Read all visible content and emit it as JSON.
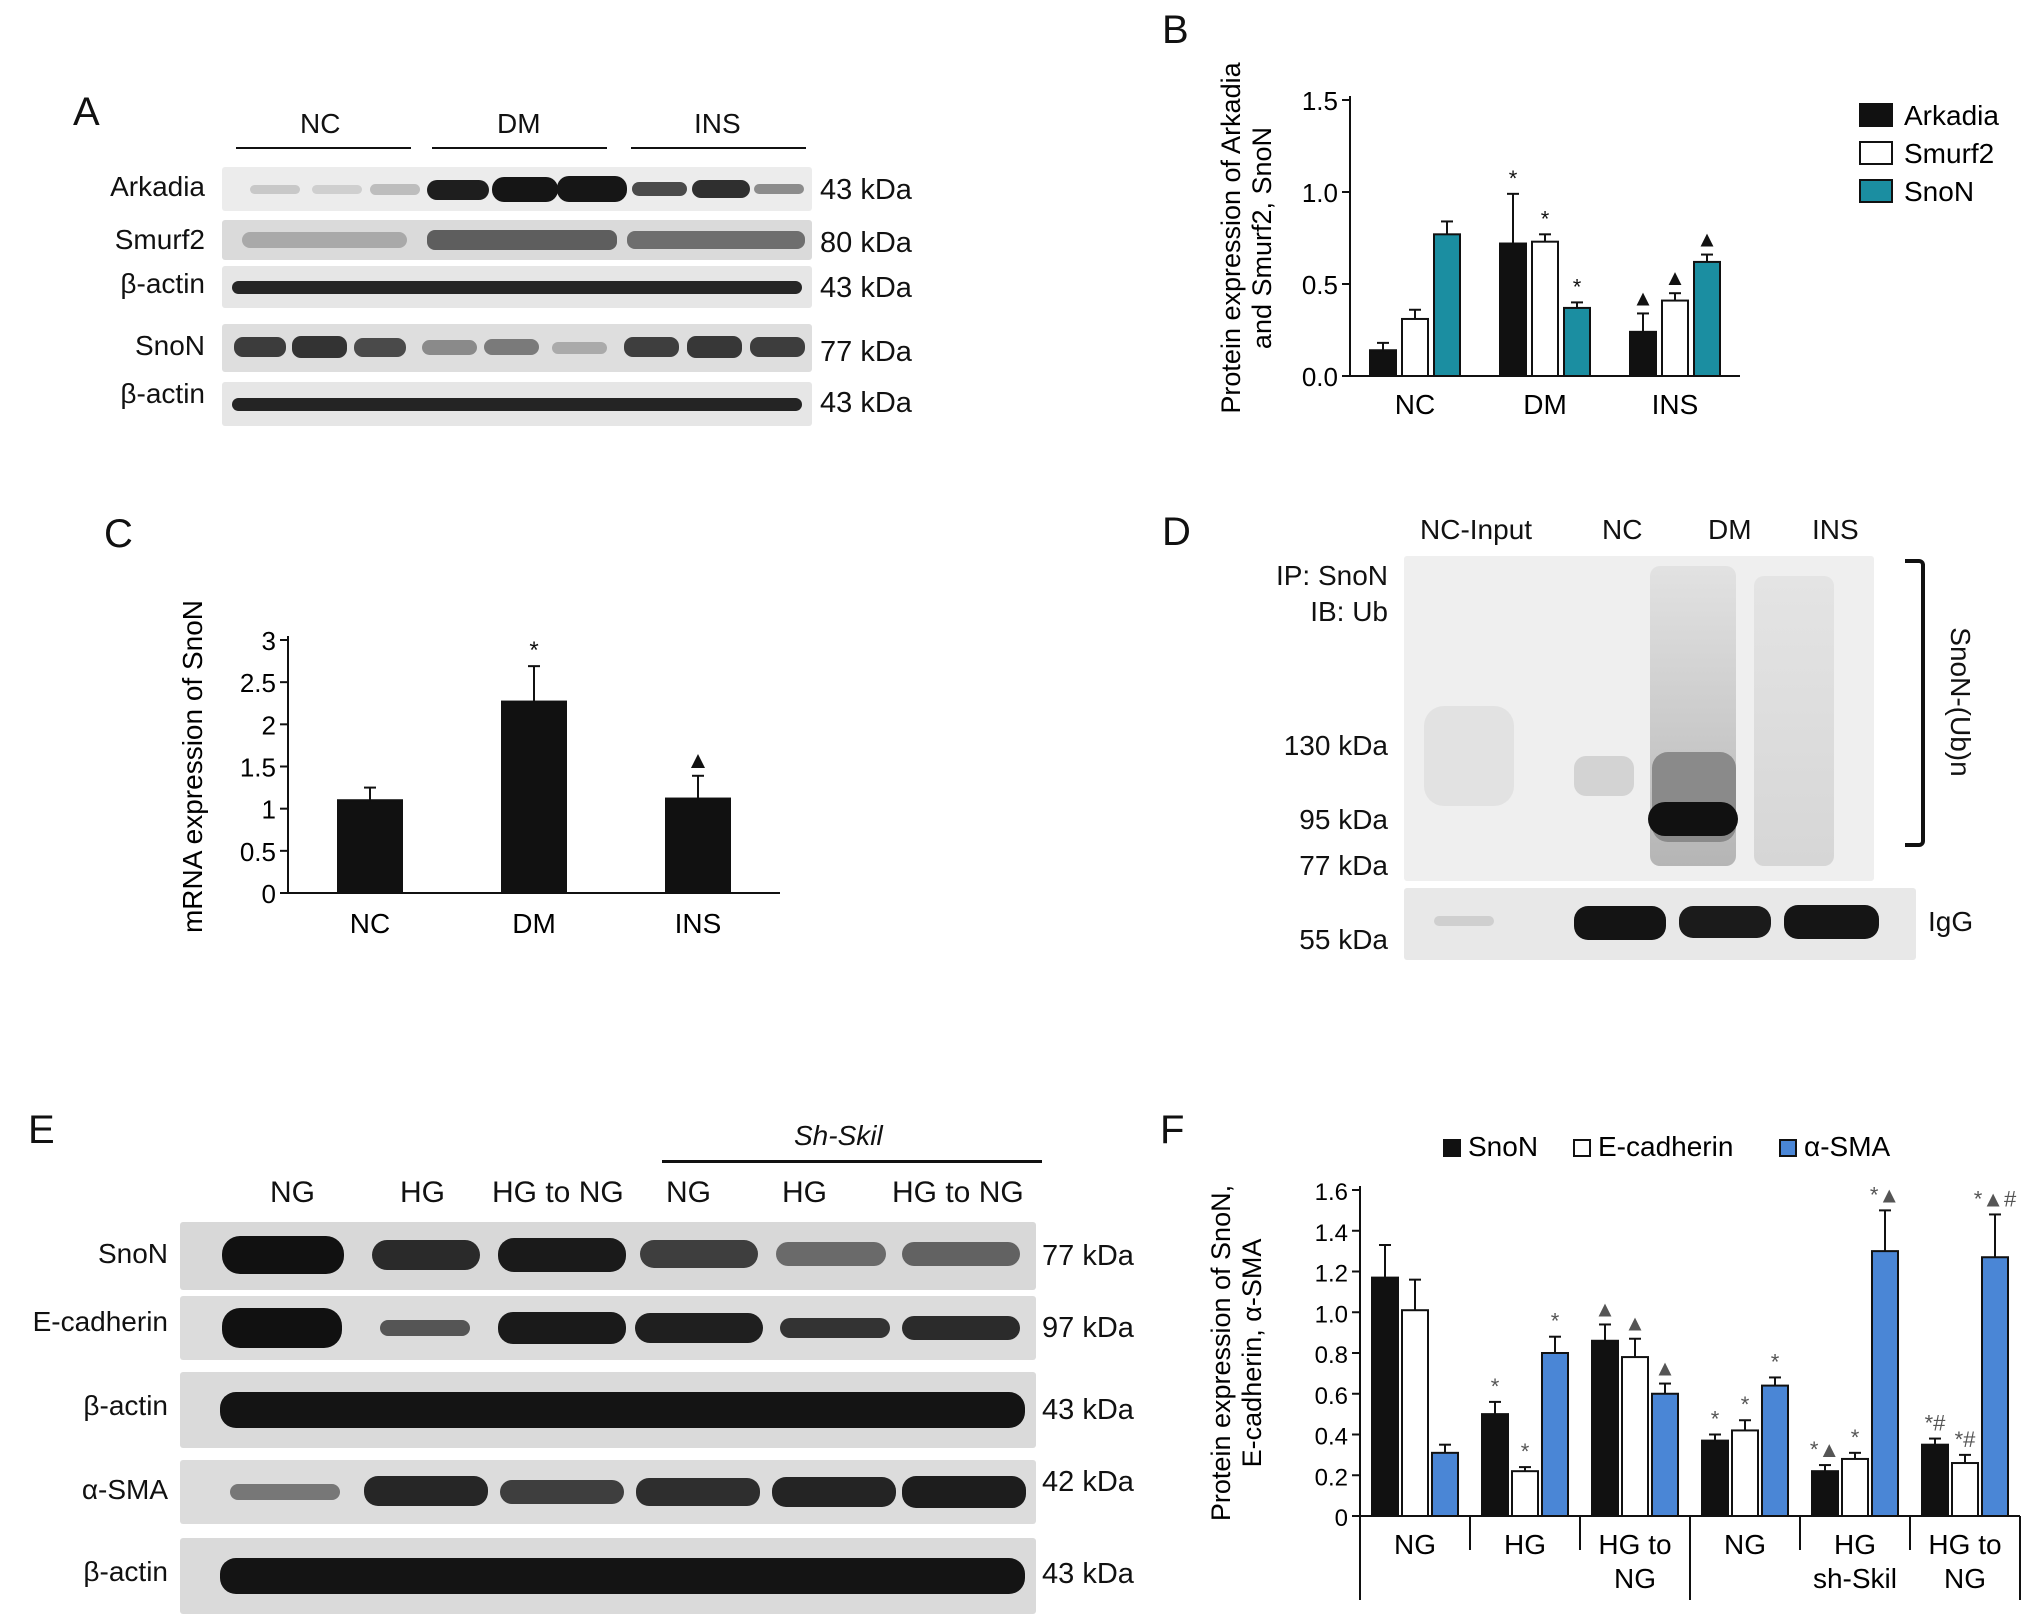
{
  "panels": {
    "A": {
      "label": "A",
      "groups": [
        "NC",
        "DM",
        "INS"
      ],
      "rows": [
        {
          "name": "Arkadia",
          "kda": "43 kDa"
        },
        {
          "name": "Smurf2",
          "kda": "80 kDa"
        },
        {
          "name": "β-actin",
          "kda": "43 kDa"
        },
        {
          "name": "SnoN",
          "kda": "77 kDa"
        },
        {
          "name": "β-actin",
          "kda": "43 kDa"
        }
      ]
    },
    "B": {
      "label": "B"
    },
    "C": {
      "label": "C"
    },
    "D": {
      "label": "D",
      "lanes": [
        "NC-Input",
        "NC",
        "DM",
        "INS"
      ],
      "ip_line1": "IP: SnoN",
      "ip_line2": "IB: Ub",
      "markers": [
        "130 kDa",
        "95 kDa",
        "77 kDa",
        "55 kDa"
      ],
      "bracket_label": "SnoN-(Ub)n",
      "igg_label": "IgG"
    },
    "E": {
      "label": "E",
      "sh_label": "Sh-Skil",
      "lanes": [
        "NG",
        "HG",
        "HG to NG",
        "NG",
        "HG",
        "HG to NG"
      ],
      "rows": [
        {
          "name": "SnoN",
          "kda": "77 kDa"
        },
        {
          "name": "E-cadherin",
          "kda": "97 kDa"
        },
        {
          "name": "β-actin",
          "kda": "43 kDa"
        },
        {
          "name": "α-SMA",
          "kda": "42 kDa"
        },
        {
          "name": "β-actin",
          "kda": "43 kDa"
        }
      ]
    },
    "F": {
      "label": "F"
    }
  },
  "colors": {
    "black": "#111111",
    "white": "#ffffff",
    "teal": "#1b8ea1",
    "blue": "#4a86d6"
  },
  "chart_data": [
    {
      "id": "B",
      "type": "bar",
      "ylabel": "Protein expression of Arkadia and Smurf2, SnoN",
      "ylim": [
        0,
        1.5
      ],
      "yticks": [
        "0.0",
        "0.5",
        "1.0",
        "1.5"
      ],
      "categories": [
        "NC",
        "DM",
        "INS"
      ],
      "legend_position": "top-right",
      "series": [
        {
          "name": "Arkadia",
          "color": "#111111",
          "values": [
            0.14,
            0.72,
            0.24
          ],
          "errors": [
            0.04,
            0.27,
            0.1
          ],
          "marks": [
            "",
            "*",
            "▲"
          ]
        },
        {
          "name": "Smurf2",
          "color": "#ffffff",
          "values": [
            0.31,
            0.73,
            0.41
          ],
          "errors": [
            0.05,
            0.04,
            0.04
          ],
          "marks": [
            "",
            "*",
            "▲"
          ]
        },
        {
          "name": "SnoN",
          "color": "#1b8ea1",
          "values": [
            0.77,
            0.37,
            0.62
          ],
          "errors": [
            0.07,
            0.03,
            0.04
          ],
          "marks": [
            "",
            "*",
            "▲"
          ]
        }
      ]
    },
    {
      "id": "C",
      "type": "bar",
      "ylabel": "mRNA expression of SnoN",
      "ylim": [
        0,
        3
      ],
      "yticks": [
        "0",
        "0.5",
        "1",
        "1.5",
        "2",
        "2.5",
        "3"
      ],
      "categories": [
        "NC",
        "DM",
        "INS"
      ],
      "series": [
        {
          "color": "#111111",
          "values": [
            1.1,
            2.27,
            1.12
          ],
          "errors": [
            0.15,
            0.42,
            0.27
          ],
          "marks": [
            "",
            "*",
            "▲"
          ]
        }
      ]
    },
    {
      "id": "F",
      "type": "bar",
      "ylabel": "Protein expression of SnoN, E-cadherin, α-SMA",
      "ylim": [
        0,
        1.6
      ],
      "yticks": [
        "0",
        "0.2",
        "0.4",
        "0.6",
        "0.8",
        "1.0",
        "1.2",
        "1.4",
        "1.6"
      ],
      "categories": [
        [
          "NG"
        ],
        [
          "HG"
        ],
        [
          "HG to",
          "NG"
        ],
        [
          "NG"
        ],
        [
          "HG",
          "sh-Skil"
        ],
        [
          "HG to",
          "NG"
        ]
      ],
      "legend_position": "top",
      "series": [
        {
          "name": "SnoN",
          "color": "#111111",
          "values": [
            1.17,
            0.5,
            0.86,
            0.37,
            0.22,
            0.35
          ],
          "errors": [
            0.16,
            0.06,
            0.08,
            0.03,
            0.03,
            0.03
          ],
          "marks": [
            "",
            "*",
            "▲",
            "*",
            "*▲",
            "*#"
          ]
        },
        {
          "name": "E-cadherin",
          "color": "#ffffff",
          "values": [
            1.01,
            0.22,
            0.78,
            0.42,
            0.28,
            0.26
          ],
          "errors": [
            0.15,
            0.02,
            0.09,
            0.05,
            0.03,
            0.04
          ],
          "marks": [
            "",
            "*",
            "▲",
            "*",
            "*",
            "*#"
          ]
        },
        {
          "name": "α-SMA",
          "color": "#4a86d6",
          "values": [
            0.31,
            0.8,
            0.6,
            0.64,
            1.3,
            1.27
          ],
          "errors": [
            0.04,
            0.08,
            0.05,
            0.04,
            0.2,
            0.21
          ],
          "marks": [
            "",
            "*",
            "▲",
            "*",
            "*▲",
            "*▲#"
          ]
        }
      ]
    }
  ]
}
